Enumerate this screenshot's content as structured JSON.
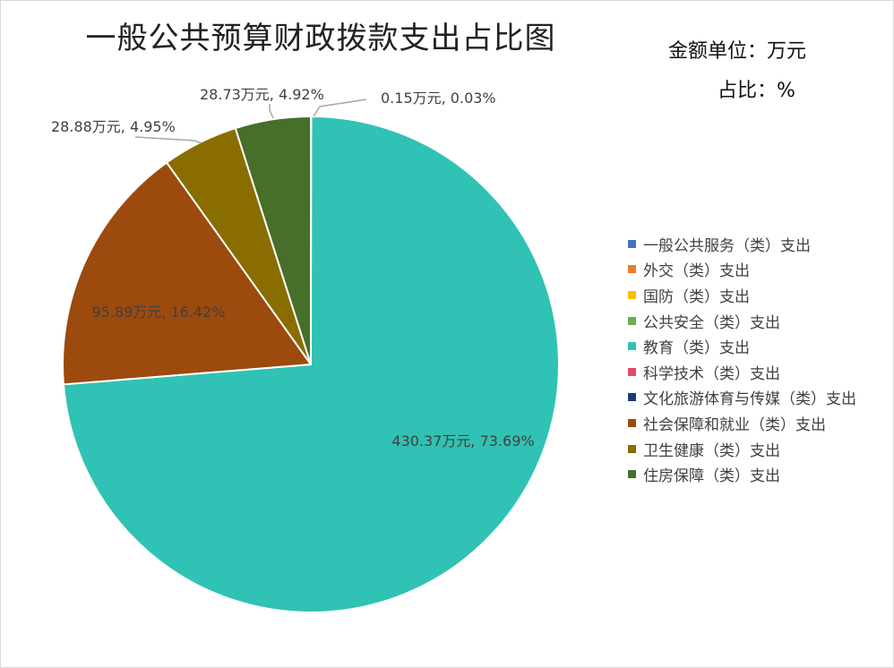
{
  "chart_data": {
    "type": "pie",
    "title": "一般公共预算财政拨款支出占比图",
    "unit_amount": "金额单位：万元",
    "unit_percent": "占比：%",
    "legend_position": "right",
    "categories": [
      "一般公共服务（类）支出",
      "外交（类）支出",
      "国防（类）支出",
      "公共安全（类）支出",
      "教育（类）支出",
      "科学技术（类）支出",
      "文化旅游体育与传媒（类）支出",
      "社会保障和就业（类）支出",
      "卫生健康（类）支出",
      "住房保障（类）支出"
    ],
    "values": [
      0.15,
      0,
      0,
      0,
      430.37,
      0,
      0,
      95.89,
      28.88,
      28.73
    ],
    "percents": [
      0.03,
      0,
      0,
      0,
      73.69,
      0,
      0,
      16.42,
      4.95,
      4.92
    ],
    "colors": [
      "#4472c4",
      "#ed7d31",
      "#ffc000",
      "#70ad47",
      "#30c2b4",
      "#e8476c",
      "#1f3a7a",
      "#9c4a0e",
      "#8a6d00",
      "#466f2a"
    ],
    "data_labels": [
      "0.15万元, 0.03%",
      "",
      "",
      "",
      "430.37万元, 73.69%",
      "",
      "",
      "95.89万元, 16.42%",
      "28.88万元, 4.95%",
      "28.73万元, 4.92%"
    ]
  }
}
